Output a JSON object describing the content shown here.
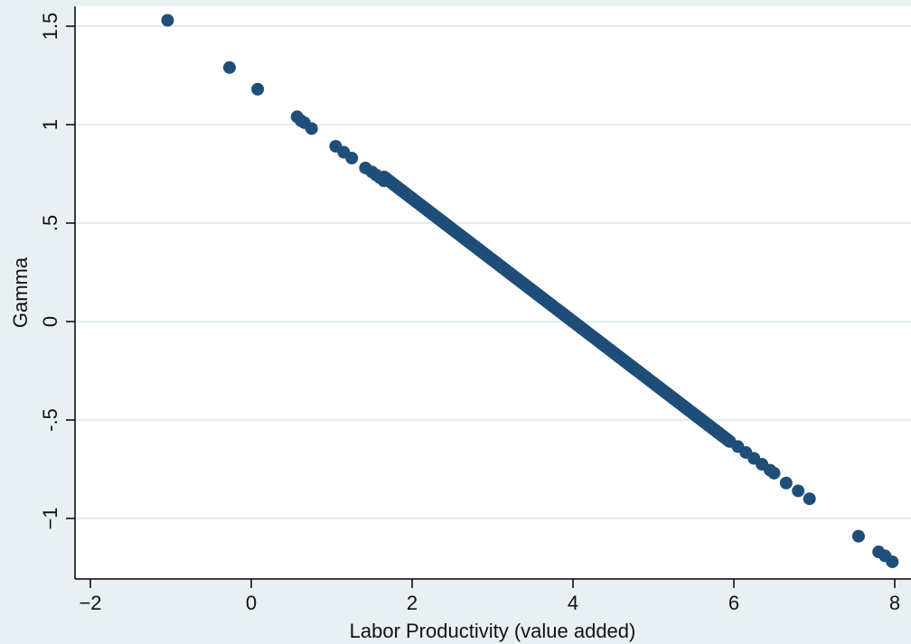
{
  "chart_data": {
    "type": "scatter",
    "title": "",
    "xlabel": "Labor Productivity (value added)",
    "ylabel": "Gamma",
    "xlim": [
      -2.2,
      8.2
    ],
    "ylim": [
      -1.3,
      1.6
    ],
    "x_ticks": [
      -2,
      0,
      2,
      4,
      6,
      8
    ],
    "x_tick_labels": [
      "−2",
      "0",
      "2",
      "4",
      "6",
      "8"
    ],
    "y_ticks": [
      -1,
      -0.5,
      0,
      0.5,
      1,
      1.5
    ],
    "y_tick_labels": [
      "−1",
      "-.5",
      "0",
      ".5",
      "1",
      "1.5"
    ],
    "grid": "horizontal",
    "colors": {
      "marker": "#1f4e79",
      "background": "#e9f0f4",
      "plot_background": "#ffffff",
      "grid": "#e3ecf1"
    },
    "points": [
      [
        -1.04,
        1.53
      ],
      [
        -0.27,
        1.29
      ],
      [
        0.08,
        1.18
      ],
      [
        0.57,
        1.04
      ],
      [
        0.62,
        1.02
      ],
      [
        0.66,
        1.01
      ],
      [
        0.75,
        0.98
      ],
      [
        1.05,
        0.89
      ],
      [
        1.15,
        0.86
      ],
      [
        1.25,
        0.83
      ],
      [
        1.42,
        0.78
      ],
      [
        1.5,
        0.76
      ],
      [
        1.55,
        0.745
      ],
      [
        1.6,
        0.73
      ],
      [
        1.65,
        0.715
      ],
      [
        6.05,
        -0.635
      ],
      [
        6.15,
        -0.665
      ],
      [
        6.25,
        -0.695
      ],
      [
        6.35,
        -0.725
      ],
      [
        6.45,
        -0.755
      ],
      [
        6.5,
        -0.77
      ],
      [
        6.65,
        -0.82
      ],
      [
        6.8,
        -0.86
      ],
      [
        6.94,
        -0.9
      ],
      [
        7.55,
        -1.09
      ],
      [
        7.8,
        -1.17
      ],
      [
        7.88,
        -1.19
      ],
      [
        7.97,
        -1.22
      ]
    ],
    "dense_segments": [
      {
        "x_start": 1.65,
        "x_end": 5.95,
        "slope": -0.3125,
        "intercept": 1.25,
        "count": 700
      }
    ]
  }
}
